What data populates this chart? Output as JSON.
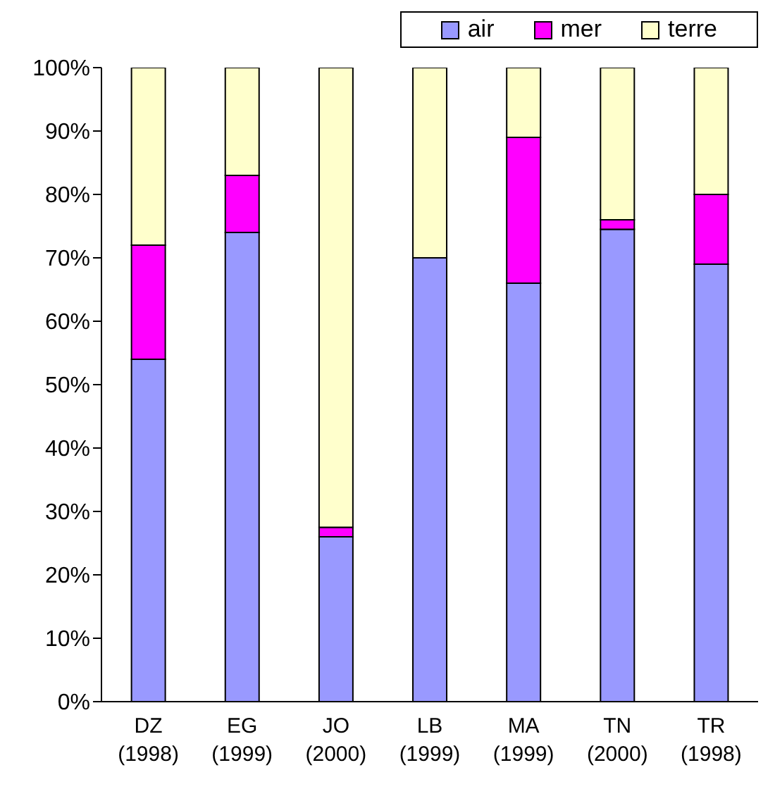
{
  "chart_data": {
    "type": "bar",
    "stacked": true,
    "categories": [
      "DZ\n(1998)",
      "EG\n(1999)",
      "JO\n(2000)",
      "LB\n(1999)",
      "MA\n(1999)",
      "TN\n(2000)",
      "TR\n(1998)"
    ],
    "series": [
      {
        "name": "air",
        "color": "#9999ff",
        "values": [
          54,
          74,
          26,
          70,
          66,
          74.5,
          69
        ]
      },
      {
        "name": "mer",
        "color": "#ff00ff",
        "values": [
          18,
          9,
          1.5,
          0,
          23,
          1.5,
          11
        ]
      },
      {
        "name": "terre",
        "color": "#ffffcc",
        "values": [
          28,
          17,
          72.5,
          30,
          11,
          24,
          20
        ]
      }
    ],
    "ylim": [
      0,
      100
    ],
    "yticks": [
      {
        "value": 0,
        "label": "0%"
      },
      {
        "value": 10,
        "label": "10%"
      },
      {
        "value": 20,
        "label": "20%"
      },
      {
        "value": 30,
        "label": "30%"
      },
      {
        "value": 40,
        "label": "40%"
      },
      {
        "value": 50,
        "label": "50%"
      },
      {
        "value": 60,
        "label": "60%"
      },
      {
        "value": 70,
        "label": "70%"
      },
      {
        "value": 80,
        "label": "80%"
      },
      {
        "value": 90,
        "label": "90%"
      },
      {
        "value": 100,
        "label": "100%"
      }
    ],
    "legend": "top right",
    "grid": false
  }
}
